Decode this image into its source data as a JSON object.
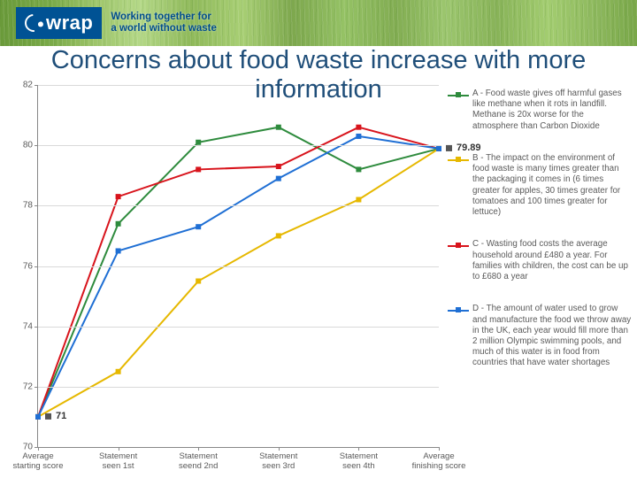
{
  "brand": {
    "logo_text": "wrap",
    "tagline_line1": "Working together for",
    "tagline_line2": "a world without waste"
  },
  "title": "Concerns about food waste increase with more information",
  "chart": {
    "type": "line",
    "plot_bg": "#ffffff",
    "grid_color": "#d9d9d9",
    "axis_color": "#888888",
    "label_color": "#5a5a5a",
    "label_fontsize": 10,
    "ylim": [
      70,
      82
    ],
    "ytick_step": 2,
    "yticks": [
      70,
      72,
      74,
      76,
      78,
      80,
      82
    ],
    "x_categories": [
      "Average starting score",
      "Statement seen 1st",
      "Statement seend 2nd",
      "Statement seen 3rd",
      "Statement seen 4th",
      "Average finishing score"
    ],
    "line_width": 2,
    "marker_style": "square",
    "marker_size": 6,
    "series": [
      {
        "id": "A",
        "color": "#2e8b3d",
        "label": "A - Food waste gives off harmful gases like methane when it rots in landfill. Methane is 20x worse for the atmosphere than Carbon Dioxide",
        "values": [
          71,
          77.4,
          80.1,
          80.6,
          79.2,
          79.89
        ]
      },
      {
        "id": "B",
        "color": "#e6b800",
        "label": "B - The impact on the environment of food waste is many times greater than the packaging it comes in (6 times greater for apples, 30 times greater for tomatoes and 100 times greater for lettuce)",
        "values": [
          71,
          72.5,
          75.5,
          77.0,
          78.2,
          79.89
        ]
      },
      {
        "id": "C",
        "color": "#d8141c",
        "label": "C - Wasting food costs the average household around £480 a year. For families with children, the cost can be up to £680 a year",
        "values": [
          71,
          78.3,
          79.2,
          79.3,
          80.6,
          79.89
        ]
      },
      {
        "id": "D",
        "color": "#1f6fd4",
        "label": "D - The amount of water used to grow and manufacture the food we throw away in the UK, each year would fill more than 2 million Olympic swimming pools, and much of this water is in food from countries that have water shortages",
        "values": [
          71,
          76.5,
          77.3,
          78.9,
          80.3,
          79.89
        ]
      }
    ],
    "start_callout": {
      "text": "71",
      "color": "#333333"
    },
    "end_callout": {
      "text": "79.89",
      "color": "#333333"
    }
  }
}
